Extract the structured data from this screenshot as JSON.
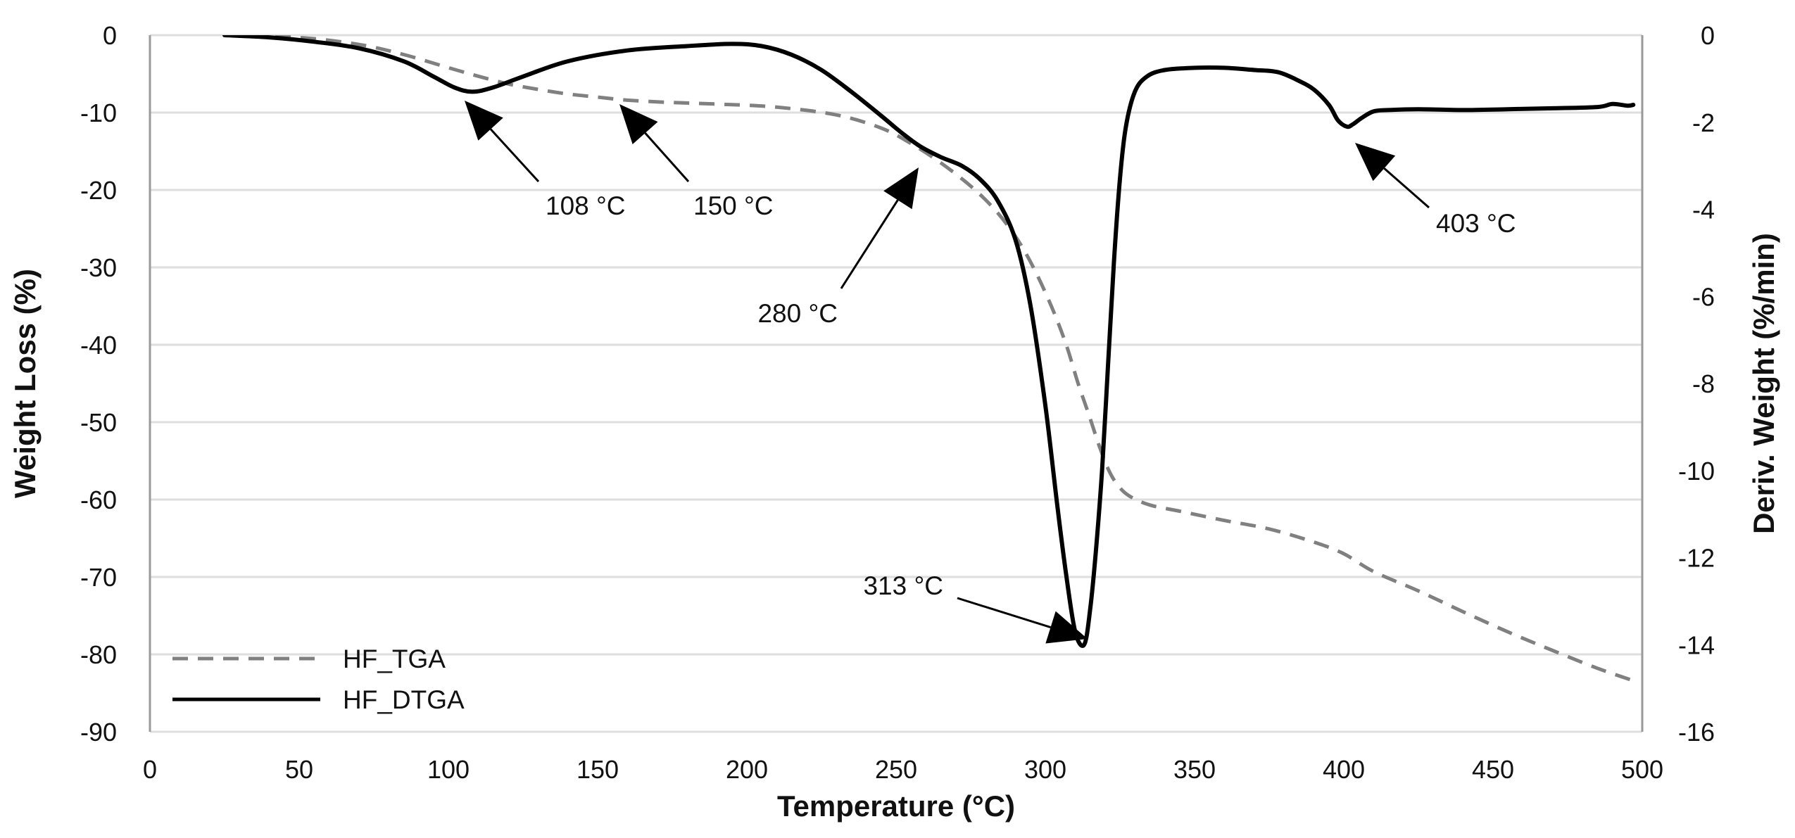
{
  "chart_data": {
    "type": "line",
    "title": "",
    "xlabel": "Temperature (°C)",
    "ylabel": "Weight Loss (%)",
    "y2label": "Deriv. Weight (%/min)",
    "xlim": [
      0,
      500
    ],
    "ylim": [
      -90,
      0
    ],
    "y2lim": [
      -16,
      0
    ],
    "xticks": [
      "0",
      "50",
      "100",
      "150",
      "200",
      "250",
      "300",
      "350",
      "400",
      "450",
      "500"
    ],
    "yticks": [
      "0",
      "-10",
      "-20",
      "-30",
      "-40",
      "-50",
      "-60",
      "-70",
      "-80",
      "-90"
    ],
    "y2ticks": [
      "0",
      "-2",
      "-4",
      "-6",
      "-8",
      "-10",
      "-12",
      "-14",
      "-16"
    ],
    "grid": true,
    "legend_position": "bottom-left",
    "series": [
      {
        "name": "HF_TGA",
        "axis": "left",
        "style": "dashed",
        "color": "#808080",
        "x": [
          25,
          50,
          70,
          85,
          100,
          110,
          120,
          130,
          140,
          150,
          160,
          175,
          190,
          210,
          230,
          245,
          255,
          265,
          275,
          283,
          290,
          296,
          302,
          307,
          311,
          315,
          318,
          321,
          324,
          328,
          335,
          345,
          360,
          375,
          390,
          400,
          410,
          425,
          440,
          455,
          470,
          485,
          497
        ],
        "y": [
          0,
          -0.3,
          -1.2,
          -2.5,
          -4.2,
          -5.3,
          -6.3,
          -7.0,
          -7.6,
          -8.0,
          -8.4,
          -8.7,
          -8.9,
          -9.3,
          -10.3,
          -12,
          -14,
          -16.5,
          -19.5,
          -22.5,
          -26,
          -30,
          -35,
          -40,
          -45,
          -49.5,
          -53,
          -56,
          -58,
          -59.5,
          -60.7,
          -61.5,
          -62.7,
          -63.8,
          -65.5,
          -67,
          -69.3,
          -71.8,
          -74.5,
          -77.1,
          -79.5,
          -81.8,
          -83.4
        ]
      },
      {
        "name": "HF_DTGA",
        "axis": "right",
        "style": "solid",
        "color": "#000000",
        "x": [
          25,
          40,
          55,
          70,
          85,
          95,
          102,
          108,
          115,
          125,
          140,
          160,
          180,
          195,
          205,
          215,
          225,
          235,
          245,
          252,
          258,
          265,
          272,
          278,
          284,
          290,
          295,
          300,
          304,
          307,
          310,
          313,
          315,
          317,
          319,
          321,
          323,
          325,
          327,
          330,
          334,
          340,
          350,
          360,
          370,
          378,
          385,
          390,
          395,
          398,
          401,
          403,
          406,
          410,
          415,
          425,
          440,
          455,
          470,
          485,
          490,
          495,
          497
        ],
        "y": [
          0,
          -0.05,
          -0.15,
          -0.3,
          -0.6,
          -0.95,
          -1.2,
          -1.3,
          -1.2,
          -0.95,
          -0.6,
          -0.35,
          -0.25,
          -0.2,
          -0.25,
          -0.45,
          -0.8,
          -1.3,
          -1.85,
          -2.25,
          -2.55,
          -2.8,
          -3.0,
          -3.3,
          -3.8,
          -4.7,
          -6.2,
          -8.5,
          -10.8,
          -12.4,
          -13.7,
          -14.0,
          -13.2,
          -11.8,
          -10.0,
          -7.6,
          -5.2,
          -3.3,
          -2.1,
          -1.3,
          -0.95,
          -0.8,
          -0.75,
          -0.75,
          -0.8,
          -0.85,
          -1.05,
          -1.25,
          -1.6,
          -1.95,
          -2.1,
          -2.05,
          -1.9,
          -1.75,
          -1.72,
          -1.7,
          -1.72,
          -1.7,
          -1.68,
          -1.65,
          -1.58,
          -1.62,
          -1.6
        ]
      }
    ],
    "annotations": [
      {
        "label": "108 °C",
        "x": 108,
        "axis": "right",
        "y": -1.3
      },
      {
        "label": "150 °C",
        "x": 160,
        "axis": "left",
        "y": -8.4
      },
      {
        "label": "280 °C",
        "x": 260,
        "axis": "left",
        "y": -16.8
      },
      {
        "label": "313 °C",
        "x": 313,
        "axis": "right",
        "y": -14.0
      },
      {
        "label": "403 °C",
        "x": 403,
        "axis": "right",
        "y": -2.1
      }
    ]
  }
}
